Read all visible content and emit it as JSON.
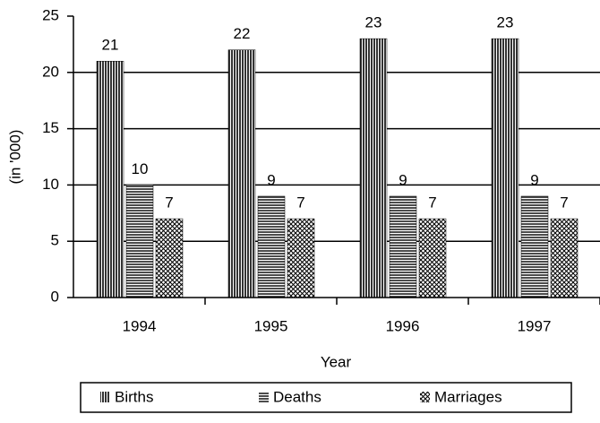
{
  "chart_data": {
    "type": "bar",
    "categories": [
      "1994",
      "1995",
      "1996",
      "1997"
    ],
    "series": [
      {
        "name": "Births",
        "color": "#000000",
        "pattern": "vertical",
        "values": [
          21,
          22,
          23,
          23
        ]
      },
      {
        "name": "Deaths",
        "color": "#000000",
        "pattern": "horizontal",
        "values": [
          10,
          9,
          9,
          9
        ]
      },
      {
        "name": "Marriages",
        "color": "#000000",
        "pattern": "crosshatch",
        "values": [
          7,
          7,
          7,
          7
        ]
      }
    ],
    "xlabel": "Year",
    "ylabel": "(in '000)",
    "ylim": [
      0,
      25
    ],
    "yticks": [
      0,
      5,
      10,
      15,
      20,
      25
    ],
    "grid": true,
    "legend": "bottom"
  }
}
